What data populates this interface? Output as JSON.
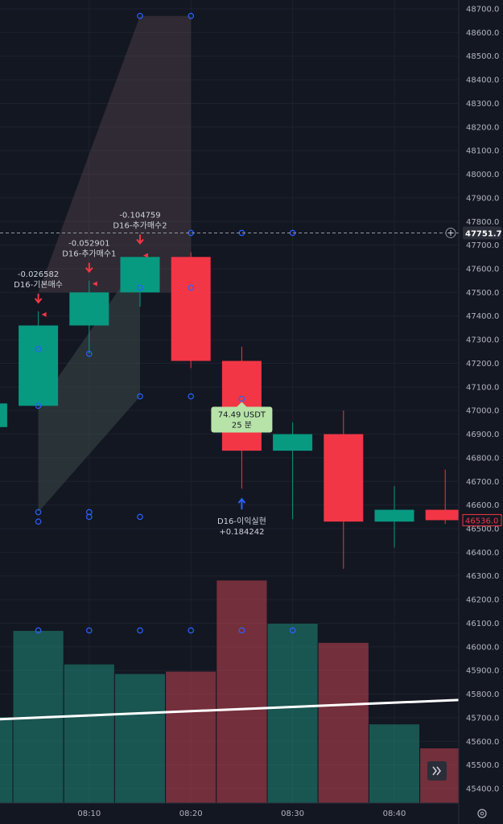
{
  "chart_data": {
    "type": "candlestick",
    "y_axis": {
      "min": 45400,
      "max": 48700,
      "ticks": [
        "48700.0",
        "48600.0",
        "48500.0",
        "48400.0",
        "48300.0",
        "48200.0",
        "48100.0",
        "48000.0",
        "47900.0",
        "47800.0",
        "47700.0",
        "47600.0",
        "47500.0",
        "47400.0",
        "47300.0",
        "47200.0",
        "47100.0",
        "47000.0",
        "46900.0",
        "46800.0",
        "46700.0",
        "46600.0",
        "46500.0",
        "46400.0",
        "46300.0",
        "46200.0",
        "46100.0",
        "46000.0",
        "45900.0",
        "45800.0",
        "45700.0",
        "45600.0",
        "45500.0",
        "45400.0"
      ]
    },
    "x_axis": {
      "ticks": [
        "08:10",
        "08:20",
        "08:30",
        "08:40"
      ]
    },
    "candles": [
      {
        "open": 46930,
        "high": 47030,
        "low": 46930,
        "close": 47030
      },
      {
        "open": 47020,
        "high": 47420,
        "low": 47020,
        "close": 47360
      },
      {
        "open": 47360,
        "high": 47550,
        "low": 47240,
        "close": 47500
      },
      {
        "open": 47500,
        "high": 47650,
        "low": 47440,
        "close": 47650
      },
      {
        "open": 47650,
        "high": 47670,
        "low": 47180,
        "close": 47210
      },
      {
        "open": 47210,
        "high": 47270,
        "low": 46670,
        "close": 46830
      },
      {
        "open": 46830,
        "high": 46950,
        "low": 46540,
        "close": 46900
      },
      {
        "open": 46900,
        "high": 47000,
        "low": 46330,
        "close": 46530
      },
      {
        "open": 46530,
        "high": 46680,
        "low": 46420,
        "close": 46580
      },
      {
        "open": 46580,
        "high": 46750,
        "low": 46520,
        "close": 46536
      }
    ],
    "volumes": [
      0.36,
      0.72,
      0.58,
      0.54,
      0.55,
      0.93,
      0.75,
      0.67,
      0.33,
      0.23
    ],
    "volume_ma": [
      0.35,
      0.43
    ],
    "colors": {
      "up": "#089981",
      "down": "#f23645",
      "up_volume": "#22ab94",
      "down_volume": "#f7525f",
      "background": "#131722"
    },
    "price_line": {
      "value": 47751.7,
      "label": "47751.7"
    },
    "last_price": {
      "value": 46536.0,
      "label": "46536.0"
    },
    "annotations": [
      {
        "text1": "-0.026582",
        "text2": "D16-기본매수",
        "candle": 1,
        "price": 47420
      },
      {
        "text1": "-0.052901",
        "text2": "D16-추가매수1",
        "candle": 2,
        "price": 47550
      },
      {
        "text1": "-0.104759",
        "text2": "D16-추가매수2",
        "candle": 3,
        "price": 47670
      }
    ],
    "exit": {
      "text1": "D16-이익실현",
      "text2": "+0.184242",
      "candle": 5,
      "price": 46670
    },
    "tooltip": {
      "line1": "74.49  USDT",
      "line2": "25 분"
    }
  }
}
